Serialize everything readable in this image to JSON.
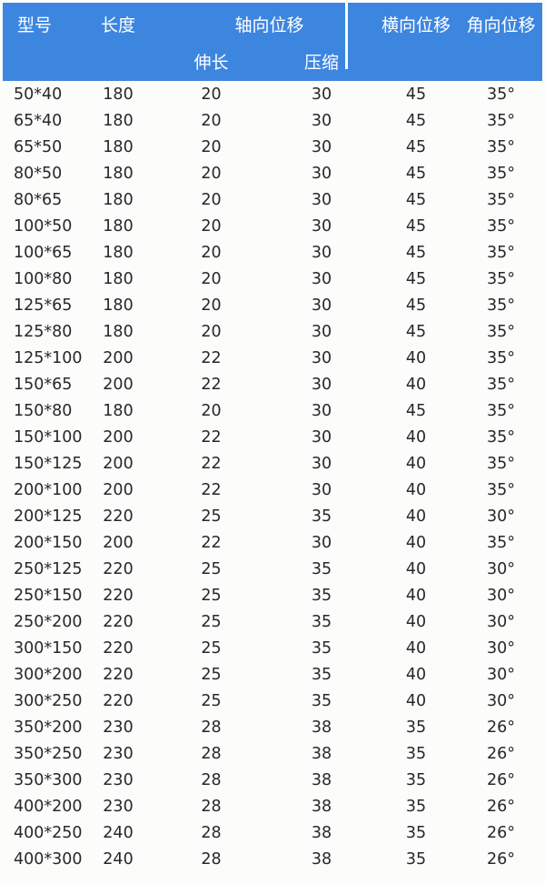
{
  "colors": {
    "header_bg": "#3d86e0",
    "header_text": "#ffffff",
    "body_text": "#27272d",
    "page_bg": "#fcfcfb"
  },
  "chart_data": {
    "type": "table",
    "title": "",
    "header": {
      "model": "型号",
      "length": "长度",
      "axial_group": "轴向位移",
      "axial_extend": "伸长",
      "axial_compress": "压缩",
      "lateral": "横向位移",
      "angular": "角向位移"
    },
    "rows": [
      [
        "50*40",
        "180",
        "20",
        "30",
        "45",
        "35°"
      ],
      [
        "65*40",
        "180",
        "20",
        "30",
        "45",
        "35°"
      ],
      [
        "65*50",
        "180",
        "20",
        "30",
        "45",
        "35°"
      ],
      [
        "80*50",
        "180",
        "20",
        "30",
        "45",
        "35°"
      ],
      [
        "80*65",
        "180",
        "20",
        "30",
        "45",
        "35°"
      ],
      [
        "100*50",
        "180",
        "20",
        "30",
        "45",
        "35°"
      ],
      [
        "100*65",
        "180",
        "20",
        "30",
        "45",
        "35°"
      ],
      [
        "100*80",
        "180",
        "20",
        "30",
        "45",
        "35°"
      ],
      [
        "125*65",
        "180",
        "20",
        "30",
        "45",
        "35°"
      ],
      [
        "125*80",
        "180",
        "20",
        "30",
        "45",
        "35°"
      ],
      [
        "125*100",
        "200",
        "22",
        "30",
        "40",
        "35°"
      ],
      [
        "150*65",
        "200",
        "22",
        "30",
        "40",
        "35°"
      ],
      [
        "150*80",
        "180",
        "20",
        "30",
        "45",
        "35°"
      ],
      [
        "150*100",
        "200",
        "22",
        "30",
        "40",
        "35°"
      ],
      [
        "150*125",
        "200",
        "22",
        "30",
        "40",
        "35°"
      ],
      [
        "200*100",
        "200",
        "22",
        "30",
        "40",
        "35°"
      ],
      [
        "200*125",
        "220",
        "25",
        "35",
        "40",
        "30°"
      ],
      [
        "200*150",
        "200",
        "22",
        "30",
        "40",
        "35°"
      ],
      [
        "250*125",
        "220",
        "25",
        "35",
        "40",
        "30°"
      ],
      [
        "250*150",
        "220",
        "25",
        "35",
        "40",
        "30°"
      ],
      [
        "250*200",
        "220",
        "25",
        "35",
        "40",
        "30°"
      ],
      [
        "300*150",
        "220",
        "25",
        "35",
        "40",
        "30°"
      ],
      [
        "300*200",
        "220",
        "25",
        "35",
        "40",
        "30°"
      ],
      [
        "300*250",
        "220",
        "25",
        "35",
        "40",
        "30°"
      ],
      [
        "350*200",
        "230",
        "28",
        "38",
        "35",
        "26°"
      ],
      [
        "350*250",
        "230",
        "28",
        "38",
        "35",
        "26°"
      ],
      [
        "350*300",
        "230",
        "28",
        "38",
        "35",
        "26°"
      ],
      [
        "400*200",
        "230",
        "28",
        "38",
        "35",
        "26°"
      ],
      [
        "400*250",
        "240",
        "28",
        "38",
        "35",
        "26°"
      ],
      [
        "400*300",
        "240",
        "28",
        "38",
        "35",
        "26°"
      ]
    ]
  }
}
